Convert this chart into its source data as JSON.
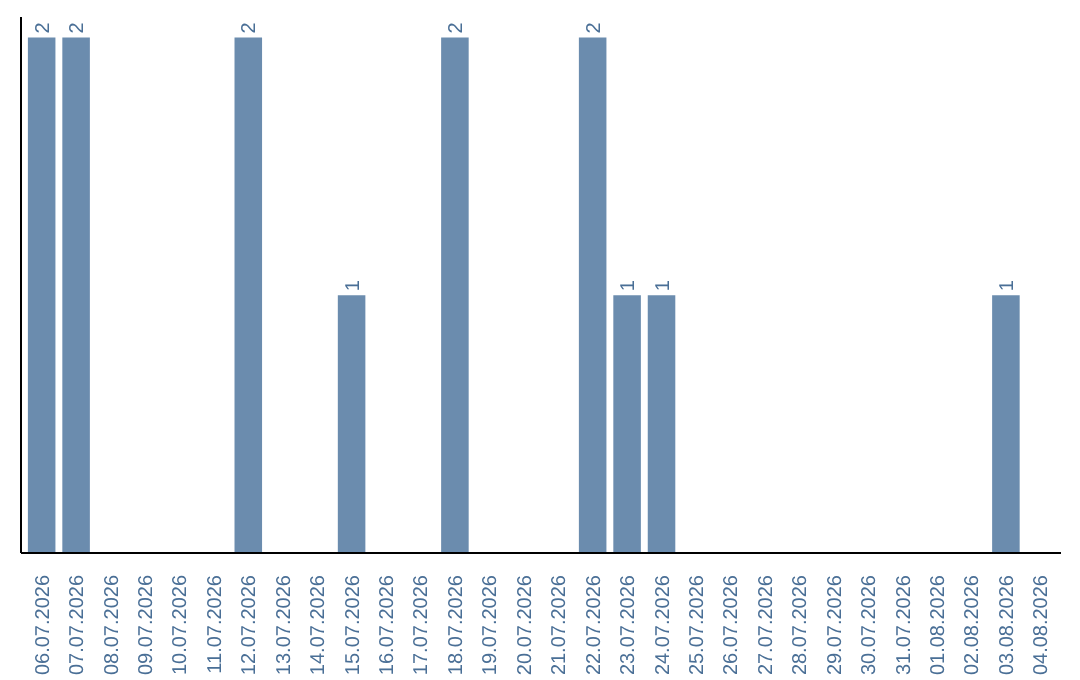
{
  "chart_data": {
    "type": "bar",
    "categories": [
      "06.07.2026",
      "07.07.2026",
      "08.07.2026",
      "09.07.2026",
      "10.07.2026",
      "11.07.2026",
      "12.07.2026",
      "13.07.2026",
      "14.07.2026",
      "15.07.2026",
      "16.07.2026",
      "17.07.2026",
      "18.07.2026",
      "19.07.2026",
      "20.07.2026",
      "21.07.2026",
      "22.07.2026",
      "23.07.2026",
      "24.07.2026",
      "25.07.2026",
      "26.07.2026",
      "27.07.2026",
      "28.07.2026",
      "29.07.2026",
      "30.07.2026",
      "31.07.2026",
      "01.08.2026",
      "02.08.2026",
      "03.08.2026",
      "04.08.2026"
    ],
    "values": [
      2,
      2,
      0,
      0,
      0,
      0,
      2,
      0,
      0,
      1,
      0,
      0,
      2,
      0,
      0,
      0,
      2,
      1,
      1,
      0,
      0,
      0,
      0,
      0,
      0,
      0,
      0,
      0,
      1,
      0
    ],
    "value_labels": [
      "2",
      "2",
      null,
      null,
      null,
      null,
      "2",
      null,
      null,
      "1",
      null,
      null,
      "2",
      null,
      null,
      null,
      "2",
      "1",
      "1",
      null,
      null,
      null,
      null,
      null,
      null,
      null,
      null,
      null,
      "1",
      null
    ],
    "color": "#6b8cae",
    "tick_labels": "x",
    "grid": false
  }
}
